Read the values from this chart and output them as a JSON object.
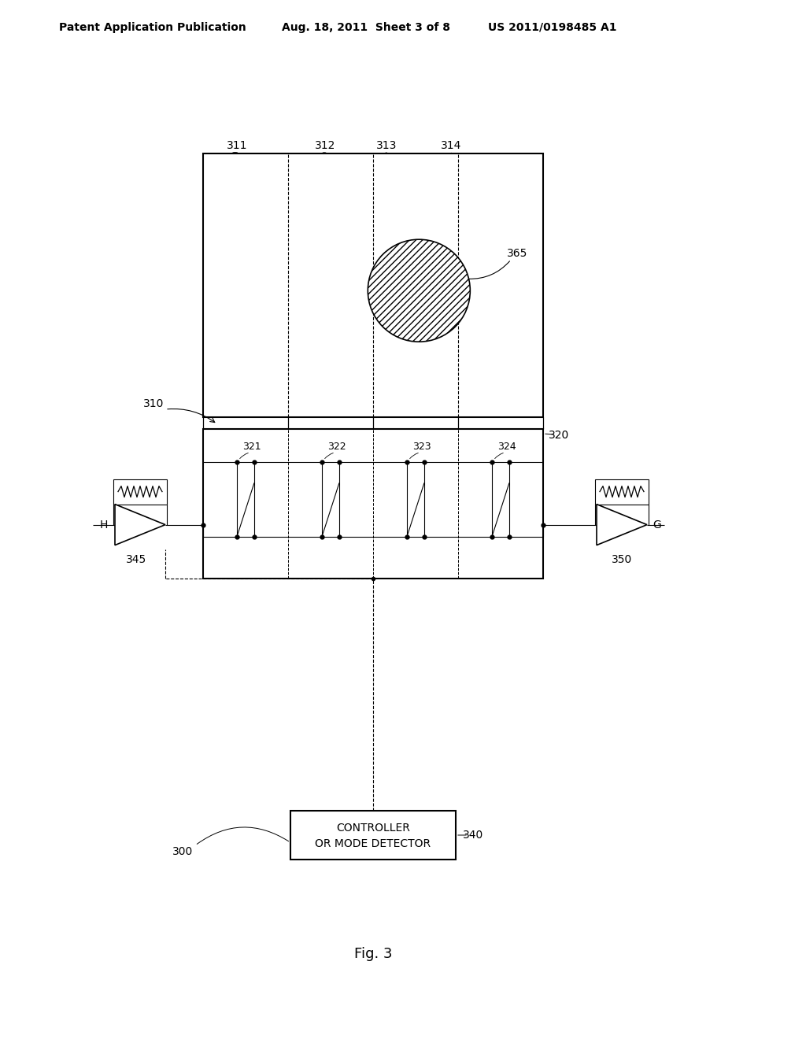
{
  "bg_color": "#ffffff",
  "header_left": "Patent Application Publication",
  "header_mid": "Aug. 18, 2011  Sheet 3 of 8",
  "header_right": "US 2011/0198485 A1",
  "caption": "Fig. 3",
  "label_311": "311",
  "label_312": "312",
  "label_313": "313",
  "label_314": "314",
  "label_365": "365",
  "label_310": "310",
  "label_320": "320",
  "label_321": "321",
  "label_322": "322",
  "label_323": "323",
  "label_324": "324",
  "label_345": "345",
  "label_350": "350",
  "label_300": "300",
  "label_340": "340",
  "label_H": "H",
  "label_G": "G",
  "controller_text1": "CONTROLLER",
  "controller_text2": "OR MODE DETECTOR"
}
